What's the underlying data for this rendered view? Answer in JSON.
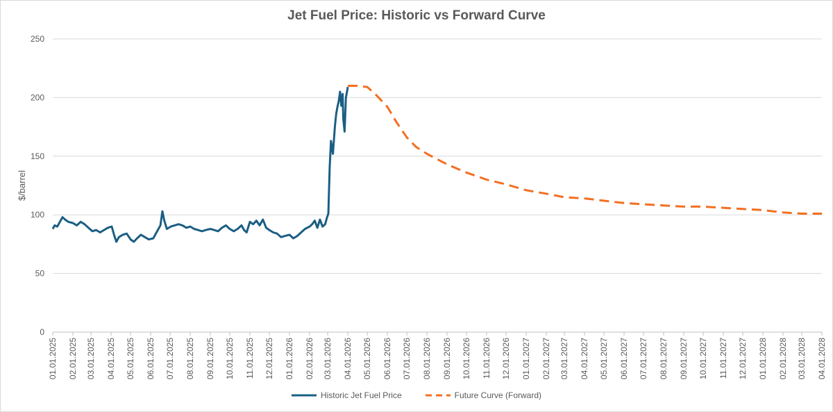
{
  "chart_data": {
    "type": "line",
    "title": "Jet Fuel Price: Historic vs Forward Curve",
    "ylabel": "$/barrel",
    "xlabel": "",
    "ylim": [
      0,
      250
    ],
    "yticks": [
      0,
      50,
      100,
      150,
      200,
      250
    ],
    "xticks": [
      "01.01.2025",
      "02.01.2025",
      "03.01.2025",
      "04.01.2025",
      "05.01.2025",
      "06.01.2025",
      "07.01.2025",
      "08.01.2025",
      "09.01.2025",
      "10.01.2025",
      "11.01.2025",
      "12.01.2025",
      "01.01.2026",
      "02.01.2026",
      "03.01.2026",
      "04.01.2026",
      "05.01.2026",
      "06.01.2026",
      "07.01.2026",
      "08.01.2026",
      "09.01.2026",
      "10.01.2026",
      "11.01.2026",
      "12.01.2026",
      "01.01.2027",
      "02.01.2027",
      "03.01.2027",
      "04.01.2027",
      "05.01.2027",
      "06.01.2027",
      "07.01.2027",
      "08.01.2027",
      "09.01.2027",
      "10.01.2027",
      "11.01.2027",
      "12.01.2027",
      "01.01.2028",
      "02.01.2028",
      "03.01.2028",
      "04.01.2028"
    ],
    "grid": "horizontal",
    "legend_position": "bottom",
    "series": [
      {
        "name": "Historic Jet Fuel Price",
        "color": "#1b5e84",
        "style": "solid",
        "x": [
          "2025-01-01",
          "2025-01-04",
          "2025-01-08",
          "2025-01-12",
          "2025-01-16",
          "2025-01-20",
          "2025-01-25",
          "2025-02-01",
          "2025-02-07",
          "2025-02-13",
          "2025-02-19",
          "2025-02-25",
          "2025-03-03",
          "2025-03-09",
          "2025-03-15",
          "2025-03-21",
          "2025-03-27",
          "2025-04-02",
          "2025-04-06",
          "2025-04-09",
          "2025-04-13",
          "2025-04-19",
          "2025-04-25",
          "2025-05-01",
          "2025-05-06",
          "2025-05-11",
          "2025-05-17",
          "2025-05-23",
          "2025-05-29",
          "2025-06-05",
          "2025-06-11",
          "2025-06-16",
          "2025-06-19",
          "2025-06-22",
          "2025-06-26",
          "2025-07-02",
          "2025-07-08",
          "2025-07-14",
          "2025-07-20",
          "2025-07-26",
          "2025-08-01",
          "2025-08-07",
          "2025-08-13",
          "2025-08-19",
          "2025-08-25",
          "2025-09-01",
          "2025-09-07",
          "2025-09-13",
          "2025-09-19",
          "2025-09-25",
          "2025-10-01",
          "2025-10-07",
          "2025-10-13",
          "2025-10-19",
          "2025-10-23",
          "2025-10-27",
          "2025-11-01",
          "2025-11-06",
          "2025-11-11",
          "2025-11-16",
          "2025-11-21",
          "2025-11-26",
          "2025-12-01",
          "2025-12-07",
          "2025-12-13",
          "2025-12-19",
          "2025-12-25",
          "2026-01-01",
          "2026-01-07",
          "2026-01-13",
          "2026-01-19",
          "2026-01-25",
          "2026-02-01",
          "2026-02-05",
          "2026-02-09",
          "2026-02-13",
          "2026-02-17",
          "2026-02-21",
          "2026-02-25",
          "2026-02-28",
          "2026-03-02",
          "2026-03-04",
          "2026-03-06",
          "2026-03-09",
          "2026-03-12",
          "2026-03-14",
          "2026-03-16",
          "2026-03-18",
          "2026-03-20",
          "2026-03-22",
          "2026-03-24",
          "2026-03-25",
          "2026-03-27",
          "2026-03-29",
          "2026-04-01"
        ],
        "values": [
          88,
          91,
          90,
          94,
          98,
          96,
          94,
          93,
          91,
          94,
          92,
          89,
          86,
          87,
          85,
          87,
          89,
          90,
          82,
          77,
          81,
          83,
          84,
          79,
          77,
          80,
          83,
          81,
          79,
          80,
          86,
          91,
          103,
          95,
          88,
          90,
          91,
          92,
          91,
          89,
          90,
          88,
          87,
          86,
          87,
          88,
          87,
          86,
          89,
          91,
          88,
          86,
          88,
          91,
          87,
          85,
          94,
          92,
          95,
          91,
          96,
          89,
          87,
          85,
          84,
          81,
          82,
          83,
          80,
          82,
          85,
          88,
          90,
          92,
          95,
          89,
          96,
          90,
          92,
          98,
          101,
          140,
          163,
          152,
          175,
          186,
          192,
          197,
          205,
          193,
          203,
          182,
          171,
          200,
          209
        ]
      },
      {
        "name": "Future Curve (Forward)",
        "color": "#f36f21",
        "style": "dashed",
        "x": [
          "2026-04-01",
          "2026-04-15",
          "2026-05-01",
          "2026-05-15",
          "2026-06-01",
          "2026-06-15",
          "2026-07-01",
          "2026-07-15",
          "2026-08-01",
          "2026-09-01",
          "2026-10-01",
          "2026-11-01",
          "2026-12-01",
          "2027-01-01",
          "2027-02-01",
          "2027-03-01",
          "2027-04-01",
          "2027-05-01",
          "2027-06-01",
          "2027-07-01",
          "2027-08-01",
          "2027-09-01",
          "2027-10-01",
          "2027-11-01",
          "2027-12-01",
          "2028-01-01",
          "2028-02-01",
          "2028-03-01",
          "2028-04-01"
        ],
        "values": [
          210,
          210,
          209,
          202,
          192,
          179,
          166,
          158,
          152,
          143,
          136,
          130,
          126,
          121,
          118,
          115,
          114,
          112,
          110,
          109,
          108,
          107,
          107,
          106,
          105,
          104,
          102,
          101,
          101
        ]
      }
    ]
  }
}
